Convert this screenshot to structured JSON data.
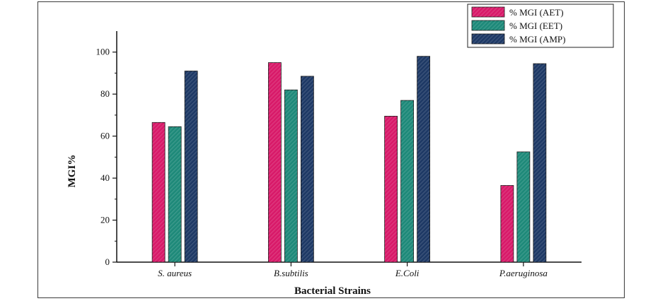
{
  "chart_data": {
    "type": "bar",
    "title": "",
    "xlabel": "Bacterial Strains",
    "ylabel": "MGI%",
    "ylim": [
      0,
      110
    ],
    "yticks": [
      0,
      20,
      40,
      60,
      80,
      100
    ],
    "grid": false,
    "legend_position": "top-right",
    "categories": [
      "S. aureus",
      "B.subtilis",
      "E.Coli",
      "P.aeruginosa"
    ],
    "series": [
      {
        "name": "% MGI (AET)",
        "color": "#d81b6a",
        "values": [
          66.5,
          95,
          69.5,
          36.5
        ]
      },
      {
        "name": "% MGI (EET)",
        "color": "#1f8a7a",
        "values": [
          64.5,
          82,
          77,
          52.5
        ]
      },
      {
        "name": "% MGI (AMP)",
        "color": "#1f3a66",
        "values": [
          91,
          88.5,
          98,
          94.5
        ]
      }
    ]
  }
}
